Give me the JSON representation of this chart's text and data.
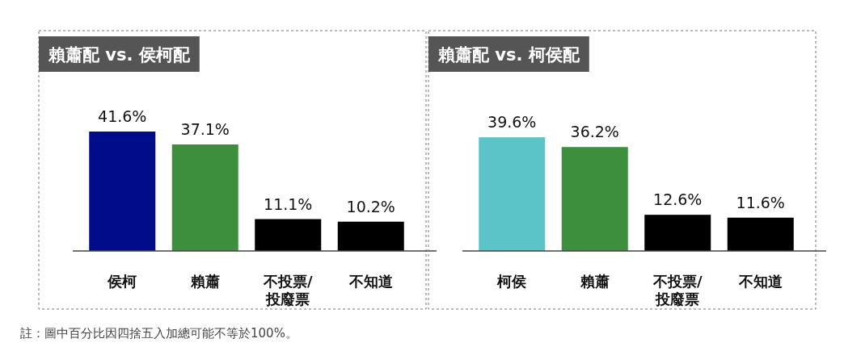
{
  "chart_data": [
    {
      "type": "bar",
      "title": "賴蕭配 vs. 侯柯配",
      "categories": [
        "侯柯",
        "賴蕭",
        "不投票/投廢票",
        "不知道"
      ],
      "values": [
        41.6,
        37.1,
        11.1,
        10.2
      ],
      "colors": [
        "#000c8a",
        "#3d8f3d",
        "#000000",
        "#000000"
      ],
      "value_labels": [
        "41.6%",
        "37.1%",
        "11.1%",
        "10.2%"
      ],
      "annotations": [
        "註：圖中百分比因四捨五入加總可能不等於100%。"
      ]
    },
    {
      "type": "bar",
      "title": "賴蕭配 vs. 柯侯配",
      "categories": [
        "柯侯",
        "賴蕭",
        "不投票/投廢票",
        "不知道"
      ],
      "values": [
        39.6,
        36.2,
        12.6,
        11.6
      ],
      "colors": [
        "#5bc4c8",
        "#3d8f3d",
        "#000000",
        "#000000"
      ],
      "value_labels": [
        "39.6%",
        "36.2%",
        "12.6%",
        "11.6%"
      ]
    }
  ]
}
